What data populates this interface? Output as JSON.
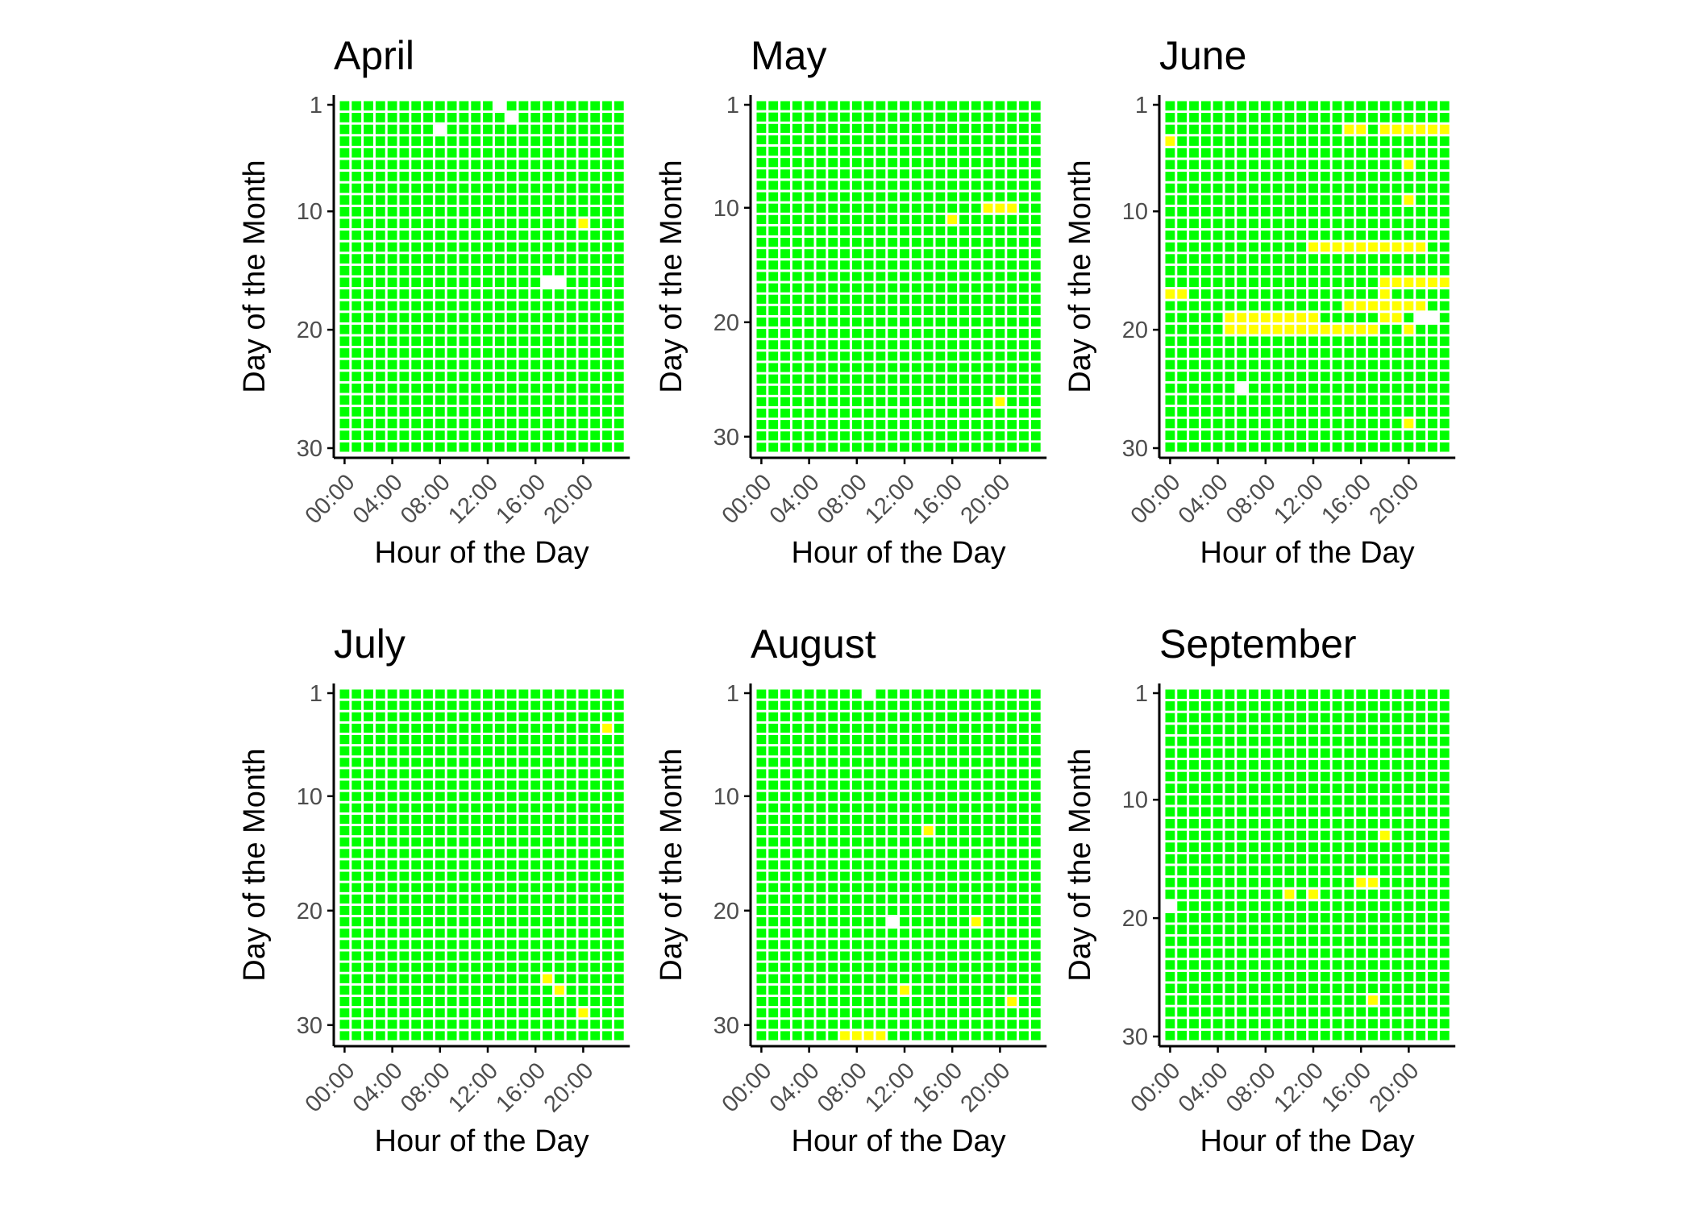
{
  "figure": {
    "ylabel": "Day of the Month",
    "xlabel": "Hour of the Day"
  },
  "colors": {
    "background": "#ffffff",
    "cell_ok": "#00ff00",
    "cell_warn": "#ffff00",
    "cell_missing": "#ffffff",
    "axis": "#000000",
    "tick_text": "#4d4d4d",
    "title_text": "#000000"
  },
  "chart_data": [
    {
      "type": "heatmap",
      "title": "April",
      "xlabel": "Hour of the Day",
      "ylabel": "Day of the Month",
      "days": 30,
      "x_ticks": [
        "00:00",
        "04:00",
        "08:00",
        "12:00",
        "16:00",
        "20:00"
      ],
      "y_ticks": [
        1,
        10,
        20,
        30
      ],
      "default_status": "ok",
      "cells": [
        {
          "day": 1,
          "hour": 13,
          "status": "missing"
        },
        {
          "day": 2,
          "hour": 14,
          "status": "missing"
        },
        {
          "day": 3,
          "hour": 8,
          "status": "missing"
        },
        {
          "day": 11,
          "hour": 20,
          "status": "warn"
        },
        {
          "day": 16,
          "hour": 17,
          "status": "missing"
        },
        {
          "day": 16,
          "hour": 18,
          "status": "missing"
        }
      ]
    },
    {
      "type": "heatmap",
      "title": "May",
      "xlabel": "Hour of the Day",
      "ylabel": "Day of the Month",
      "days": 31,
      "x_ticks": [
        "00:00",
        "04:00",
        "08:00",
        "12:00",
        "16:00",
        "20:00"
      ],
      "y_ticks": [
        1,
        10,
        20,
        30
      ],
      "default_status": "ok",
      "cells": [
        {
          "day": 10,
          "hour": 19,
          "status": "warn"
        },
        {
          "day": 10,
          "hour": 20,
          "status": "warn"
        },
        {
          "day": 10,
          "hour": 21,
          "status": "warn"
        },
        {
          "day": 11,
          "hour": 16,
          "status": "warn"
        },
        {
          "day": 27,
          "hour": 20,
          "status": "warn"
        }
      ]
    },
    {
      "type": "heatmap",
      "title": "June",
      "xlabel": "Hour of the Day",
      "ylabel": "Day of the Month",
      "days": 30,
      "x_ticks": [
        "00:00",
        "04:00",
        "08:00",
        "12:00",
        "16:00",
        "20:00"
      ],
      "y_ticks": [
        1,
        10,
        20,
        30
      ],
      "default_status": "ok",
      "cells": [
        {
          "day": 3,
          "hour": 15,
          "status": "warn"
        },
        {
          "day": 3,
          "hour": 16,
          "status": "warn"
        },
        {
          "day": 3,
          "hour": 18,
          "status": "warn"
        },
        {
          "day": 3,
          "hour": 19,
          "status": "warn"
        },
        {
          "day": 3,
          "hour": 20,
          "status": "warn"
        },
        {
          "day": 3,
          "hour": 21,
          "status": "warn"
        },
        {
          "day": 3,
          "hour": 22,
          "status": "warn"
        },
        {
          "day": 3,
          "hour": 23,
          "status": "warn"
        },
        {
          "day": 4,
          "hour": 0,
          "status": "warn"
        },
        {
          "day": 6,
          "hour": 20,
          "status": "warn"
        },
        {
          "day": 9,
          "hour": 20,
          "status": "warn"
        },
        {
          "day": 13,
          "hour": 12,
          "status": "warn"
        },
        {
          "day": 13,
          "hour": 13,
          "status": "warn"
        },
        {
          "day": 13,
          "hour": 14,
          "status": "warn"
        },
        {
          "day": 13,
          "hour": 15,
          "status": "warn"
        },
        {
          "day": 13,
          "hour": 16,
          "status": "warn"
        },
        {
          "day": 13,
          "hour": 17,
          "status": "warn"
        },
        {
          "day": 13,
          "hour": 18,
          "status": "warn"
        },
        {
          "day": 13,
          "hour": 19,
          "status": "warn"
        },
        {
          "day": 13,
          "hour": 20,
          "status": "warn"
        },
        {
          "day": 13,
          "hour": 21,
          "status": "warn"
        },
        {
          "day": 16,
          "hour": 18,
          "status": "warn"
        },
        {
          "day": 16,
          "hour": 19,
          "status": "warn"
        },
        {
          "day": 16,
          "hour": 20,
          "status": "warn"
        },
        {
          "day": 16,
          "hour": 21,
          "status": "warn"
        },
        {
          "day": 16,
          "hour": 22,
          "status": "warn"
        },
        {
          "day": 16,
          "hour": 23,
          "status": "warn"
        },
        {
          "day": 17,
          "hour": 0,
          "status": "warn"
        },
        {
          "day": 17,
          "hour": 1,
          "status": "warn"
        },
        {
          "day": 17,
          "hour": 18,
          "status": "warn"
        },
        {
          "day": 18,
          "hour": 15,
          "status": "warn"
        },
        {
          "day": 18,
          "hour": 16,
          "status": "warn"
        },
        {
          "day": 18,
          "hour": 17,
          "status": "warn"
        },
        {
          "day": 18,
          "hour": 18,
          "status": "warn"
        },
        {
          "day": 18,
          "hour": 19,
          "status": "warn"
        },
        {
          "day": 18,
          "hour": 20,
          "status": "warn"
        },
        {
          "day": 18,
          "hour": 21,
          "status": "warn"
        },
        {
          "day": 19,
          "hour": 5,
          "status": "warn"
        },
        {
          "day": 19,
          "hour": 6,
          "status": "warn"
        },
        {
          "day": 19,
          "hour": 7,
          "status": "warn"
        },
        {
          "day": 19,
          "hour": 8,
          "status": "warn"
        },
        {
          "day": 19,
          "hour": 9,
          "status": "warn"
        },
        {
          "day": 19,
          "hour": 10,
          "status": "warn"
        },
        {
          "day": 19,
          "hour": 11,
          "status": "warn"
        },
        {
          "day": 19,
          "hour": 12,
          "status": "warn"
        },
        {
          "day": 19,
          "hour": 18,
          "status": "warn"
        },
        {
          "day": 19,
          "hour": 19,
          "status": "warn"
        },
        {
          "day": 19,
          "hour": 21,
          "status": "missing"
        },
        {
          "day": 19,
          "hour": 22,
          "status": "missing"
        },
        {
          "day": 20,
          "hour": 5,
          "status": "warn"
        },
        {
          "day": 20,
          "hour": 6,
          "status": "warn"
        },
        {
          "day": 20,
          "hour": 7,
          "status": "warn"
        },
        {
          "day": 20,
          "hour": 8,
          "status": "warn"
        },
        {
          "day": 20,
          "hour": 9,
          "status": "warn"
        },
        {
          "day": 20,
          "hour": 10,
          "status": "warn"
        },
        {
          "day": 20,
          "hour": 11,
          "status": "warn"
        },
        {
          "day": 20,
          "hour": 12,
          "status": "warn"
        },
        {
          "day": 20,
          "hour": 13,
          "status": "warn"
        },
        {
          "day": 20,
          "hour": 14,
          "status": "warn"
        },
        {
          "day": 20,
          "hour": 15,
          "status": "warn"
        },
        {
          "day": 20,
          "hour": 16,
          "status": "warn"
        },
        {
          "day": 20,
          "hour": 17,
          "status": "warn"
        },
        {
          "day": 20,
          "hour": 20,
          "status": "warn"
        },
        {
          "day": 25,
          "hour": 6,
          "status": "missing"
        },
        {
          "day": 28,
          "hour": 20,
          "status": "warn"
        }
      ]
    },
    {
      "type": "heatmap",
      "title": "July",
      "xlabel": "Hour of the Day",
      "ylabel": "Day of the Month",
      "days": 31,
      "x_ticks": [
        "00:00",
        "04:00",
        "08:00",
        "12:00",
        "16:00",
        "20:00"
      ],
      "y_ticks": [
        1,
        10,
        20,
        30
      ],
      "default_status": "ok",
      "cells": [
        {
          "day": 4,
          "hour": 22,
          "status": "warn"
        },
        {
          "day": 26,
          "hour": 17,
          "status": "warn"
        },
        {
          "day": 27,
          "hour": 18,
          "status": "warn"
        },
        {
          "day": 29,
          "hour": 20,
          "status": "warn"
        }
      ]
    },
    {
      "type": "heatmap",
      "title": "August",
      "xlabel": "Hour of the Day",
      "ylabel": "Day of the Month",
      "days": 31,
      "x_ticks": [
        "00:00",
        "04:00",
        "08:00",
        "12:00",
        "16:00",
        "20:00"
      ],
      "y_ticks": [
        1,
        10,
        20,
        30
      ],
      "default_status": "ok",
      "cells": [
        {
          "day": 1,
          "hour": 9,
          "status": "missing"
        },
        {
          "day": 13,
          "hour": 14,
          "status": "warn"
        },
        {
          "day": 21,
          "hour": 11,
          "status": "missing"
        },
        {
          "day": 21,
          "hour": 18,
          "status": "warn"
        },
        {
          "day": 27,
          "hour": 12,
          "status": "warn"
        },
        {
          "day": 28,
          "hour": 21,
          "status": "warn"
        },
        {
          "day": 31,
          "hour": 7,
          "status": "warn"
        },
        {
          "day": 31,
          "hour": 8,
          "status": "warn"
        },
        {
          "day": 31,
          "hour": 9,
          "status": "warn"
        },
        {
          "day": 31,
          "hour": 10,
          "status": "warn"
        }
      ]
    },
    {
      "type": "heatmap",
      "title": "September",
      "xlabel": "Hour of the Day",
      "ylabel": "Day of the Month",
      "days": 30,
      "x_ticks": [
        "00:00",
        "04:00",
        "08:00",
        "12:00",
        "16:00",
        "20:00"
      ],
      "y_ticks": [
        1,
        10,
        20,
        30
      ],
      "default_status": "ok",
      "cells": [
        {
          "day": 13,
          "hour": 18,
          "status": "warn"
        },
        {
          "day": 17,
          "hour": 16,
          "status": "warn"
        },
        {
          "day": 17,
          "hour": 17,
          "status": "warn"
        },
        {
          "day": 18,
          "hour": 10,
          "status": "warn"
        },
        {
          "day": 18,
          "hour": 12,
          "status": "warn"
        },
        {
          "day": 19,
          "hour": 0,
          "status": "missing"
        },
        {
          "day": 27,
          "hour": 17,
          "status": "warn"
        }
      ]
    }
  ]
}
